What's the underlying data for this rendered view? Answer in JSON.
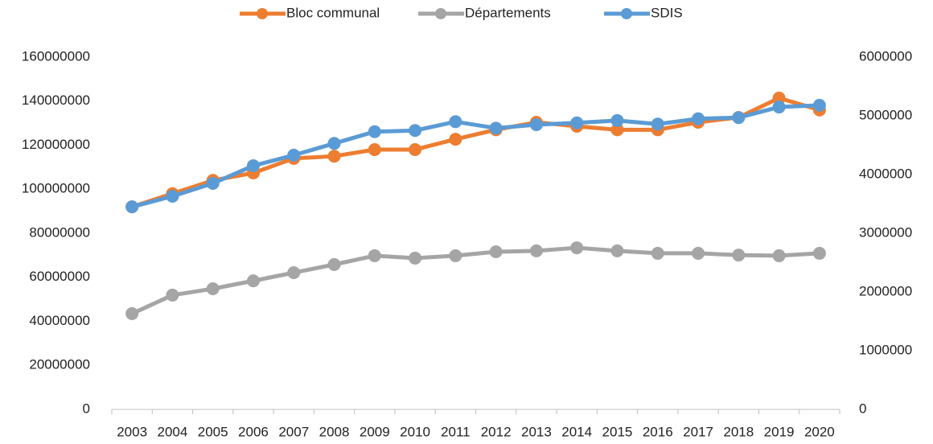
{
  "chart_data": {
    "type": "line",
    "categories": [
      "2003",
      "2004",
      "2005",
      "2006",
      "2007",
      "2008",
      "2009",
      "2010",
      "2011",
      "2012",
      "2013",
      "2014",
      "2015",
      "2016",
      "2017",
      "2018",
      "2019",
      "2020"
    ],
    "series": [
      {
        "name": "Bloc communal",
        "color": "#ED7D31",
        "values": [
          92000000,
          98000000,
          104000000,
          107400000,
          114000000,
          115000000,
          118000000,
          118000000,
          122700000,
          127000000,
          130400000,
          128600000,
          127000000,
          127000000,
          130400000,
          132600000,
          141400000,
          136000000
        ]
      },
      {
        "name": "Départements",
        "color": "#A5A5A5",
        "values": [
          43500000,
          51900000,
          54800000,
          58400000,
          62100000,
          65800000,
          69800000,
          68700000,
          69800000,
          71600000,
          72000000,
          73400000,
          72000000,
          70900000,
          70900000,
          70100000,
          69800000,
          70900000
        ]
      },
      {
        "name": "SDIS",
        "color": "#5B9BD5",
        "axis": "y2",
        "values": [
          3450000,
          3630000,
          3850000,
          4150000,
          4330000,
          4530000,
          4730000,
          4750000,
          4900000,
          4790000,
          4850000,
          4880000,
          4920000,
          4860000,
          4950000,
          4970000,
          5150000,
          5180000
        ]
      }
    ],
    "ylim": [
      0,
      160000000
    ],
    "yticks": [
      0,
      20000000,
      40000000,
      60000000,
      80000000,
      100000000,
      120000000,
      140000000,
      160000000
    ],
    "y2lim": [
      0,
      6000000
    ],
    "y2ticks": [
      0,
      1000000,
      2000000,
      3000000,
      4000000,
      5000000,
      6000000
    ],
    "grid": false,
    "legend": "top"
  }
}
